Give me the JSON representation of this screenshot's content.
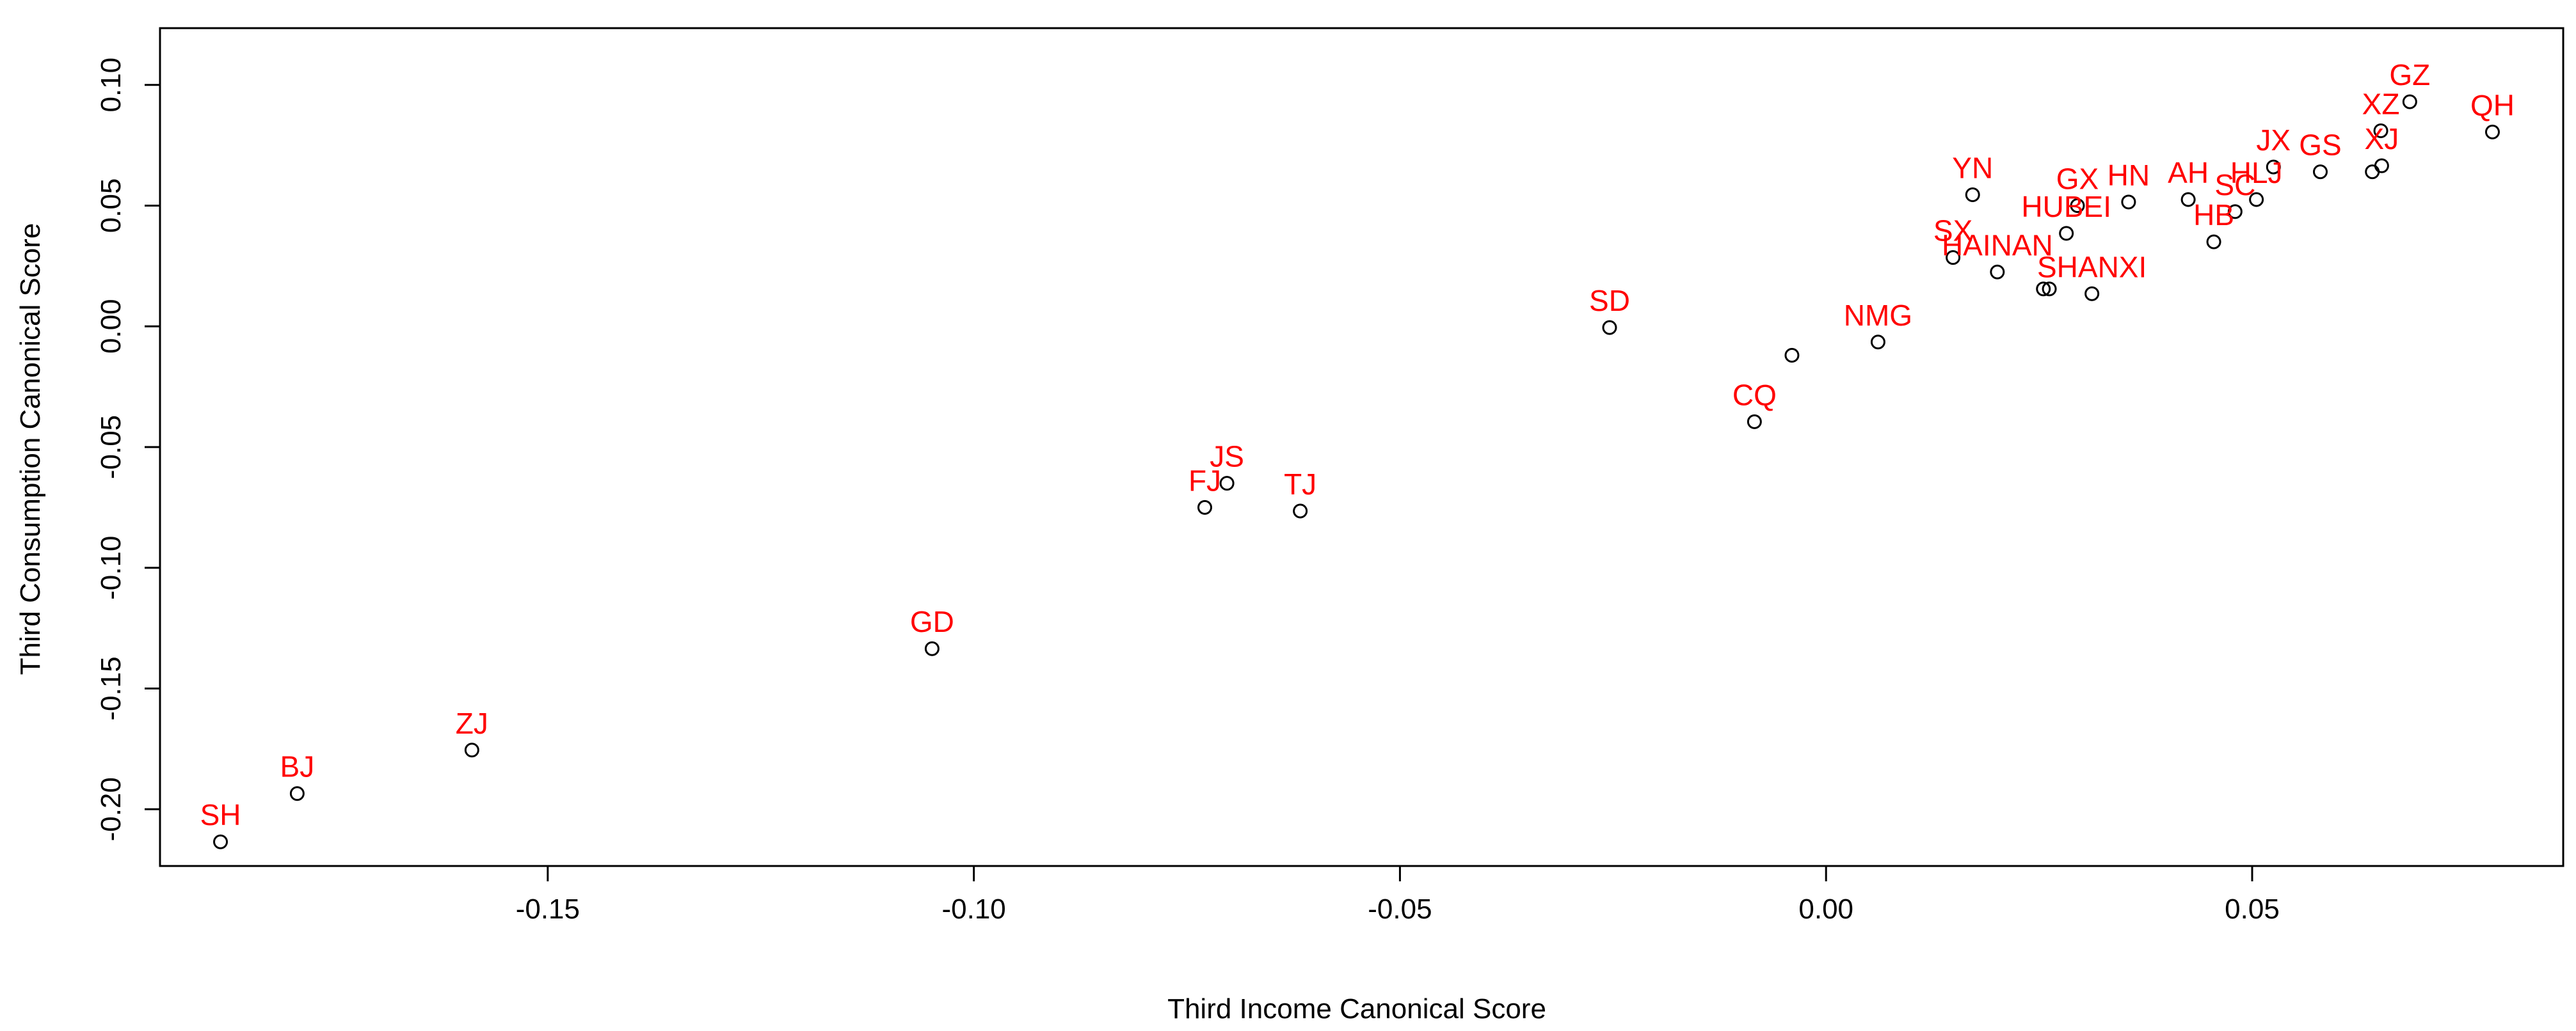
{
  "chart_data": {
    "type": "scatter",
    "title": "",
    "xlabel": "Third Income Canonical Score",
    "ylabel": "Third Consumption Canonical Score",
    "xlim": [
      -0.1955,
      0.0865
    ],
    "ylim": [
      -0.2235,
      0.1235
    ],
    "xticks": [
      -0.15,
      -0.1,
      -0.05,
      0.0,
      0.05
    ],
    "xtick_labels": [
      "-0.15",
      "-0.10",
      "-0.05",
      "0.00",
      "0.05"
    ],
    "yticks": [
      -0.2,
      -0.15,
      -0.1,
      -0.05,
      0.0,
      0.05,
      0.1
    ],
    "ytick_labels": [
      "-0.20",
      "-0.15",
      "-0.10",
      "-0.05",
      "0.00",
      "0.05",
      "0.10"
    ],
    "grid": false,
    "label_color": "#ff0000",
    "point_color": "#000000",
    "points": [
      {
        "x": -0.1884,
        "y": -0.2135,
        "label": "SH"
      },
      {
        "x": -0.1794,
        "y": -0.1935,
        "label": "BJ"
      },
      {
        "x": -0.1589,
        "y": -0.1755,
        "label": "ZJ"
      },
      {
        "x": -0.1049,
        "y": -0.1335,
        "label": "GD"
      },
      {
        "x": -0.0729,
        "y": -0.075,
        "label": "FJ"
      },
      {
        "x": -0.0703,
        "y": -0.065,
        "label": "JS"
      },
      {
        "x": -0.0617,
        "y": -0.0765,
        "label": "TJ"
      },
      {
        "x": -0.0254,
        "y": -0.0005,
        "label": "SD"
      },
      {
        "x": -0.0084,
        "y": -0.0395,
        "label": "CQ"
      },
      {
        "x": -0.004,
        "y": -0.012,
        "label": ""
      },
      {
        "x": 0.0061,
        "y": -0.0065,
        "label": "NMG"
      },
      {
        "x": 0.0149,
        "y": 0.0285,
        "label": "SX"
      },
      {
        "x": 0.0172,
        "y": 0.0545,
        "label": "YN"
      },
      {
        "x": 0.0201,
        "y": 0.0225,
        "label": "HAINAN"
      },
      {
        "x": 0.0255,
        "y": 0.0155,
        "label": ""
      },
      {
        "x": 0.0262,
        "y": 0.0155,
        "label": ""
      },
      {
        "x": 0.0282,
        "y": 0.0385,
        "label": "HUBEI"
      },
      {
        "x": 0.0295,
        "y": 0.05,
        "label": "GX"
      },
      {
        "x": 0.0312,
        "y": 0.0135,
        "label": "SHANXI"
      },
      {
        "x": 0.0355,
        "y": 0.0515,
        "label": "HN"
      },
      {
        "x": 0.0425,
        "y": 0.0525,
        "label": "AH"
      },
      {
        "x": 0.0455,
        "y": 0.035,
        "label": "HB"
      },
      {
        "x": 0.048,
        "y": 0.0475,
        "label": "SC"
      },
      {
        "x": 0.0505,
        "y": 0.0525,
        "label": "HLJ"
      },
      {
        "x": 0.0525,
        "y": 0.066,
        "label": "JX"
      },
      {
        "x": 0.058,
        "y": 0.064,
        "label": "GS"
      },
      {
        "x": 0.0641,
        "y": 0.064,
        "label": ""
      },
      {
        "x": 0.0652,
        "y": 0.0665,
        "label": "XJ"
      },
      {
        "x": 0.0651,
        "y": 0.081,
        "label": "XZ"
      },
      {
        "x": 0.0685,
        "y": 0.093,
        "label": "GZ"
      },
      {
        "x": 0.0782,
        "y": 0.0805,
        "label": "QH"
      }
    ]
  }
}
